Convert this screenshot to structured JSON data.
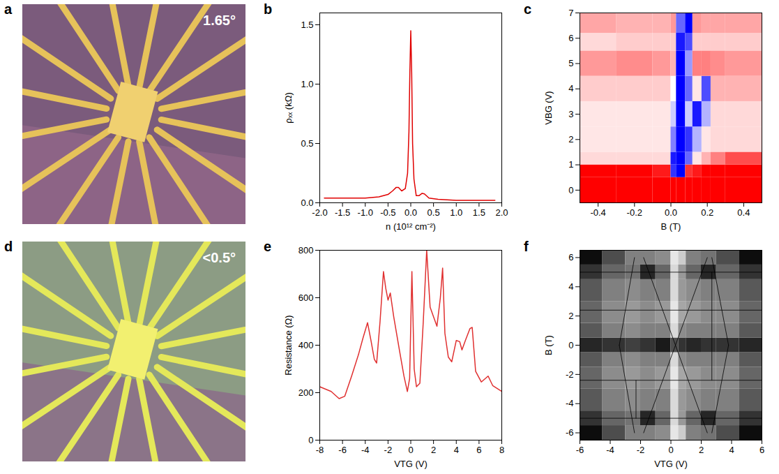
{
  "chart_data": [
    {
      "panel_label": "a",
      "type": "image",
      "annotation": "1.65°"
    },
    {
      "panel_label": "b",
      "type": "line",
      "xlabel": "n (10¹² cm⁻²)",
      "ylabel": "ρₓₓ (kΩ)",
      "color": "#e00000",
      "x": [
        -1.9,
        -1.5,
        -1.0,
        -0.7,
        -0.5,
        -0.4,
        -0.32,
        -0.27,
        -0.2,
        -0.12,
        -0.07,
        -0.04,
        -0.02,
        0,
        0.02,
        0.04,
        0.07,
        0.12,
        0.18,
        0.25,
        0.3,
        0.4,
        0.6,
        1.0,
        1.5,
        1.85
      ],
      "values": [
        0.04,
        0.04,
        0.04,
        0.05,
        0.07,
        0.1,
        0.13,
        0.13,
        0.1,
        0.12,
        0.25,
        0.6,
        1.1,
        1.45,
        1.1,
        0.5,
        0.2,
        0.06,
        0.06,
        0.08,
        0.075,
        0.04,
        0.03,
        0.02,
        0.02,
        0.02
      ],
      "xlim": [
        -2,
        2
      ],
      "xticks": [
        {
          "value": -2,
          "label": "-2.0"
        },
        {
          "value": -1.5,
          "label": "-1.5"
        },
        {
          "value": -1,
          "label": "-1.0"
        },
        {
          "value": -0.5,
          "label": "-0.5"
        },
        {
          "value": 0,
          "label": "0.0"
        },
        {
          "value": 0.5,
          "label": "0.5"
        },
        {
          "value": 1,
          "label": "1.0"
        },
        {
          "value": 1.5,
          "label": "1.5"
        },
        {
          "value": 2,
          "label": "2.0"
        }
      ],
      "ylim": [
        0,
        1.6
      ],
      "yticks": [
        {
          "value": 0,
          "label": "0.0"
        },
        0.5,
        {
          "value": 1,
          "label": "1.0"
        },
        1.5
      ]
    },
    {
      "panel_label": "c",
      "type": "heatmap",
      "xlabel": "B (T)",
      "ylabel": "VBG (V)",
      "x_edges": [
        -0.5,
        -0.3,
        -0.1,
        0,
        0.03,
        0.08,
        0.12,
        0.17,
        0.22,
        0.3,
        0.5
      ],
      "y_edges": [
        -0.5,
        0.5,
        1,
        1.5,
        2.5,
        3.5,
        4.5,
        5.5,
        6.2,
        7
      ],
      "cells": [
        [
          1,
          1,
          1,
          1,
          1,
          1,
          1,
          1,
          1,
          1
        ],
        [
          1,
          1,
          0.9,
          -0.8,
          -1,
          0.8,
          0.9,
          1,
          1,
          1
        ],
        [
          0.15,
          0.15,
          0.15,
          -0.9,
          -1,
          -0.6,
          0.1,
          0.3,
          0.5,
          0.7
        ],
        [
          0.1,
          0.1,
          0.1,
          -0.5,
          -1,
          -0.8,
          -0.3,
          0.1,
          0.15,
          0.15
        ],
        [
          0.1,
          0.1,
          0.1,
          -0.2,
          -1,
          -0.2,
          -0.9,
          -0.3,
          0.15,
          0.15
        ],
        [
          0.2,
          0.2,
          0.2,
          0,
          -1,
          -0.6,
          0.1,
          -0.7,
          0.3,
          0.3
        ],
        [
          0.4,
          0.45,
          0.4,
          0.3,
          -1,
          -0.4,
          0.5,
          0.5,
          0.45,
          0.4
        ],
        [
          0.15,
          0.2,
          0.2,
          0.2,
          -0.9,
          -0.7,
          0.2,
          0.2,
          0.2,
          0.2
        ],
        [
          0.35,
          0.3,
          0.3,
          0.4,
          -0.6,
          -1,
          0.4,
          0.35,
          0.35,
          0.35
        ]
      ],
      "colors": [
        "#0000ff",
        "#ffffff",
        "#ff0000"
      ],
      "zlim": [
        -1,
        1
      ],
      "xlim": [
        -0.5,
        0.5
      ],
      "xticks": [
        -0.4,
        -0.2,
        {
          "value": 0,
          "label": "0.0"
        },
        0.2,
        0.4
      ],
      "ylim": [
        -0.5,
        7
      ],
      "yticks": [
        0,
        1,
        2,
        3,
        4,
        5,
        6,
        7
      ]
    },
    {
      "panel_label": "d",
      "type": "image",
      "annotation": "<0.5°"
    },
    {
      "panel_label": "e",
      "type": "line",
      "xlabel": "VTG (V)",
      "ylabel": "Resistance (Ω)",
      "color": "#e03030",
      "x": [
        -8,
        -7,
        -6.3,
        -5.8,
        -5.2,
        -4.6,
        -4.2,
        -3.8,
        -3.5,
        -3.2,
        -3.0,
        -2.7,
        -2.4,
        -2.2,
        -2.0,
        -1.8,
        -1.5,
        -1.0,
        -0.6,
        -0.3,
        -0.1,
        0.1,
        0.3,
        0.5,
        0.8,
        1.1,
        1.4,
        1.7,
        2.0,
        2.3,
        2.6,
        2.8,
        3.0,
        3.3,
        3.6,
        4.0,
        4.3,
        4.5,
        4.8,
        5.2,
        5.4,
        5.7,
        6.2,
        6.8,
        7.2,
        8
      ],
      "values": [
        225,
        205,
        175,
        185,
        270,
        360,
        430,
        495,
        420,
        340,
        325,
        500,
        710,
        640,
        590,
        620,
        520,
        380,
        270,
        205,
        260,
        710,
        300,
        225,
        240,
        500,
        800,
        560,
        520,
        480,
        600,
        725,
        450,
        350,
        330,
        420,
        415,
        380,
        420,
        470,
        475,
        290,
        245,
        270,
        230,
        205
      ],
      "xlim": [
        -8,
        8
      ],
      "xticks": [
        -8,
        -6,
        -4,
        -2,
        0,
        2,
        4,
        6,
        8
      ],
      "ylim": [
        0,
        800
      ],
      "yticks": [
        0,
        200,
        400,
        600,
        800
      ]
    },
    {
      "panel_label": "f",
      "type": "heatmap",
      "xlabel": "VTG (V)",
      "ylabel": "B (T)",
      "x_edges": [
        -6,
        -4.5,
        -3,
        -2,
        -1,
        0,
        0.5,
        1,
        2,
        3,
        4.5,
        6
      ],
      "y_edges": [
        -6.5,
        -5.5,
        -4.5,
        -3,
        -1.5,
        -0.5,
        0.5,
        1.5,
        3,
        4.5,
        5.5,
        6.5
      ],
      "cells": [
        [
          0.05,
          0.3,
          0.5,
          0.5,
          0.55,
          0.9,
          0.8,
          0.5,
          0.45,
          0.3,
          0.05
        ],
        [
          0.2,
          0.4,
          0.45,
          0.15,
          0.4,
          0.85,
          0.6,
          0.4,
          0.15,
          0.4,
          0.2
        ],
        [
          0.35,
          0.5,
          0.55,
          0.5,
          0.5,
          0.85,
          0.6,
          0.55,
          0.5,
          0.5,
          0.35
        ],
        [
          0.4,
          0.55,
          0.6,
          0.55,
          0.6,
          0.9,
          0.65,
          0.6,
          0.55,
          0.55,
          0.4
        ],
        [
          0.35,
          0.5,
          0.55,
          0.5,
          0.5,
          0.85,
          0.55,
          0.5,
          0.5,
          0.5,
          0.35
        ],
        [
          0.15,
          0.2,
          0.25,
          0.2,
          0.1,
          0.3,
          0.2,
          0.15,
          0.2,
          0.2,
          0.15
        ],
        [
          0.35,
          0.5,
          0.55,
          0.5,
          0.5,
          0.85,
          0.55,
          0.5,
          0.5,
          0.5,
          0.35
        ],
        [
          0.4,
          0.55,
          0.6,
          0.55,
          0.6,
          0.9,
          0.65,
          0.6,
          0.55,
          0.55,
          0.4
        ],
        [
          0.35,
          0.5,
          0.55,
          0.5,
          0.5,
          0.85,
          0.6,
          0.55,
          0.5,
          0.5,
          0.35
        ],
        [
          0.2,
          0.4,
          0.45,
          0.15,
          0.4,
          0.85,
          0.6,
          0.4,
          0.15,
          0.4,
          0.2
        ],
        [
          0.05,
          0.3,
          0.5,
          0.5,
          0.55,
          0.9,
          0.8,
          0.5,
          0.45,
          0.3,
          0.05
        ]
      ],
      "colors": [
        "#000000",
        "#ffffff"
      ],
      "zlim": [
        0,
        1
      ],
      "lines": {
        "color": "#000000",
        "segments": [
          {
            "x": [
              -6,
              6
            ],
            "y": [
              5,
              5
            ]
          },
          {
            "x": [
              -6,
              6
            ],
            "y": [
              2.4,
              2.4
            ]
          },
          {
            "x": [
              -6,
              6
            ],
            "y": [
              -2.4,
              -2.4
            ]
          },
          {
            "x": [
              -6,
              6
            ],
            "y": [
              -5,
              -5
            ]
          },
          {
            "x": [
              0.3,
              -1.8
            ],
            "y": [
              0,
              6
            ]
          },
          {
            "x": [
              0.3,
              2.4
            ],
            "y": [
              0,
              6
            ]
          },
          {
            "x": [
              0.3,
              -1.8
            ],
            "y": [
              0,
              -6
            ]
          },
          {
            "x": [
              0.3,
              2.4
            ],
            "y": [
              0,
              -6
            ]
          },
          {
            "x": [
              -3.4,
              -2.4
            ],
            "y": [
              0,
              6
            ]
          },
          {
            "x": [
              3.8,
              2.7
            ],
            "y": [
              0,
              6
            ]
          },
          {
            "x": [
              -3.4,
              -2.4
            ],
            "y": [
              0,
              -6
            ]
          },
          {
            "x": [
              3.8,
              2.7
            ],
            "y": [
              0,
              -6
            ]
          },
          {
            "x": [
              2.7,
              2.7
            ],
            "y": [
              -2.4,
              5
            ]
          },
          {
            "x": [
              -2.3,
              -2.3
            ],
            "y": [
              -5,
              -2.4
            ]
          }
        ]
      },
      "xlim": [
        -6,
        6
      ],
      "xticks": [
        -6,
        -4,
        -2,
        0,
        2,
        4,
        6
      ],
      "ylim": [
        -6.5,
        6.5
      ],
      "yticks": [
        -6,
        -4,
        -2,
        0,
        2,
        4,
        6
      ]
    }
  ]
}
